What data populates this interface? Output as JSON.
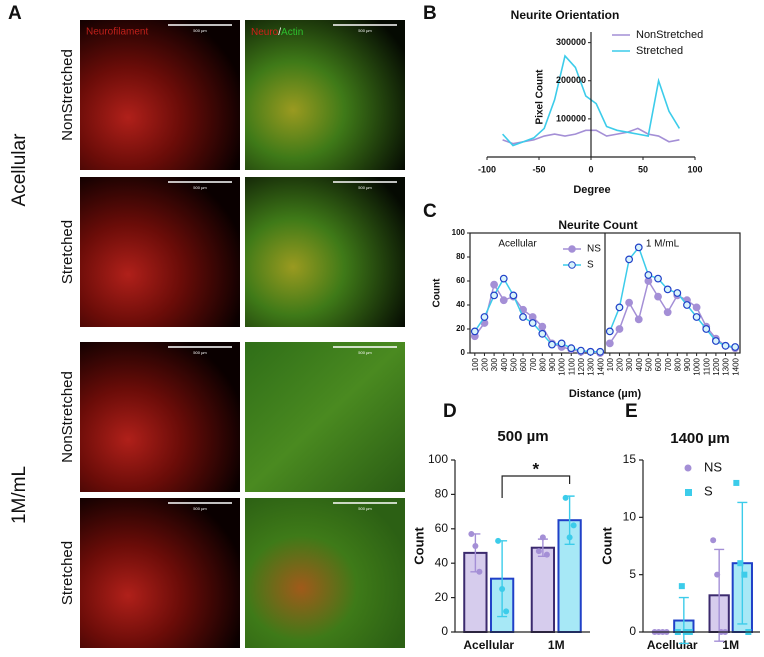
{
  "panel_a": {
    "label": "A",
    "channel_left": "Neurofilament",
    "channel_right_1": "Neuro",
    "channel_sep": "/",
    "channel_right_2": "Actin",
    "scale_bar": "500 µm",
    "groups": [
      "Acellular",
      "1M/mL"
    ],
    "rows": [
      "NonStretched",
      "Stretched",
      "NonStretched",
      "Stretched"
    ]
  },
  "chart_data": [
    {
      "type": "line",
      "label": "B",
      "title": "Neurite Orientation",
      "x_label": "Degree",
      "y_label": "Pixel Count",
      "x": [
        -85,
        -75,
        -65,
        -55,
        -45,
        -35,
        -25,
        -15,
        -5,
        5,
        15,
        25,
        35,
        45,
        55,
        65,
        75,
        85
      ],
      "series": [
        {
          "name": "NonStretched",
          "color": "#a48fd6",
          "values": [
            45000,
            35000,
            40000,
            45000,
            55000,
            60000,
            55000,
            60000,
            70000,
            70000,
            55000,
            60000,
            65000,
            75000,
            60000,
            55000,
            40000,
            45000
          ]
        },
        {
          "name": "Stretched",
          "color": "#3cccea",
          "values": [
            60000,
            30000,
            40000,
            50000,
            75000,
            150000,
            265000,
            235000,
            160000,
            140000,
            80000,
            70000,
            65000,
            60000,
            55000,
            200000,
            120000,
            75000
          ]
        }
      ],
      "xlim": [
        -100,
        100
      ],
      "xticks": [
        -100,
        -50,
        0,
        50,
        100
      ],
      "ylim": [
        0,
        320000
      ],
      "yticks": [
        100000,
        200000,
        300000
      ],
      "legend": "upper right"
    },
    {
      "type": "line",
      "label": "C",
      "title": "Neurite Count",
      "x_label": "Distance (µm)",
      "y_label": "Count",
      "categories": [
        "100",
        "200",
        "300",
        "400",
        "500",
        "600",
        "700",
        "800",
        "900",
        "1000",
        "1100",
        "1200",
        "1300",
        "1400"
      ],
      "panels": [
        {
          "title": "Acellular",
          "series": [
            {
              "name": "NS",
              "color": "#a48fd6",
              "values": [
                14,
                25,
                57,
                44,
                47,
                36,
                30,
                22,
                8,
                5,
                3,
                1,
                1,
                0
              ]
            },
            {
              "name": "S",
              "color": "#3cccea",
              "values": [
                18,
                30,
                48,
                62,
                48,
                30,
                25,
                16,
                7,
                8,
                4,
                2,
                1,
                1
              ]
            }
          ]
        },
        {
          "title": "1 M/mL",
          "series": [
            {
              "color": "#a48fd6",
              "values": [
                8,
                20,
                42,
                28,
                60,
                47,
                34,
                48,
                44,
                38,
                22,
                12,
                6,
                4
              ]
            },
            {
              "color": "#3cccea",
              "values": [
                18,
                38,
                78,
                88,
                65,
                62,
                53,
                50,
                40,
                30,
                20,
                10,
                6,
                5
              ]
            }
          ]
        }
      ],
      "ylim": [
        0,
        100
      ],
      "yticks": [
        0,
        20,
        40,
        60,
        80,
        100
      ],
      "legend": "upper left"
    },
    {
      "type": "bar",
      "label": "D",
      "title": "500 µm",
      "y_label": "Count",
      "categories": [
        "Acellular",
        "1M"
      ],
      "series": [
        {
          "color": "#a48fd6",
          "values": [
            46,
            49
          ],
          "errors": [
            11,
            5
          ],
          "points": [
            [
              57,
              50,
              35
            ],
            [
              47,
              55,
              45
            ]
          ]
        },
        {
          "color": "#3cccea",
          "values": [
            31,
            65
          ],
          "errors": [
            22,
            14
          ],
          "points": [
            [
              53,
              25,
              12
            ],
            [
              78,
              55,
              62
            ]
          ]
        }
      ],
      "ylim": [
        0,
        100
      ],
      "yticks": [
        0,
        20,
        40,
        60,
        80,
        100
      ],
      "annotation": "*"
    },
    {
      "type": "bar",
      "label": "E",
      "title": "1400 µm",
      "y_label": "Count",
      "categories": [
        "Acellular",
        "1M"
      ],
      "series": [
        {
          "name": "NS",
          "color": "#a48fd6",
          "values": [
            0,
            3.2
          ],
          "errors": [
            0,
            4
          ],
          "points": [
            [
              0,
              0,
              0,
              0
            ],
            [
              8,
              5,
              0,
              0
            ]
          ]
        },
        {
          "name": "S",
          "color": "#3cccea",
          "values": [
            1,
            6
          ],
          "errors": [
            2,
            5.3
          ],
          "points": [
            [
              0,
              4,
              0,
              0
            ],
            [
              13,
              6,
              5,
              0
            ]
          ]
        }
      ],
      "ylim": [
        0,
        15
      ],
      "yticks": [
        0,
        5,
        10,
        15
      ],
      "legend": "upper right"
    }
  ]
}
